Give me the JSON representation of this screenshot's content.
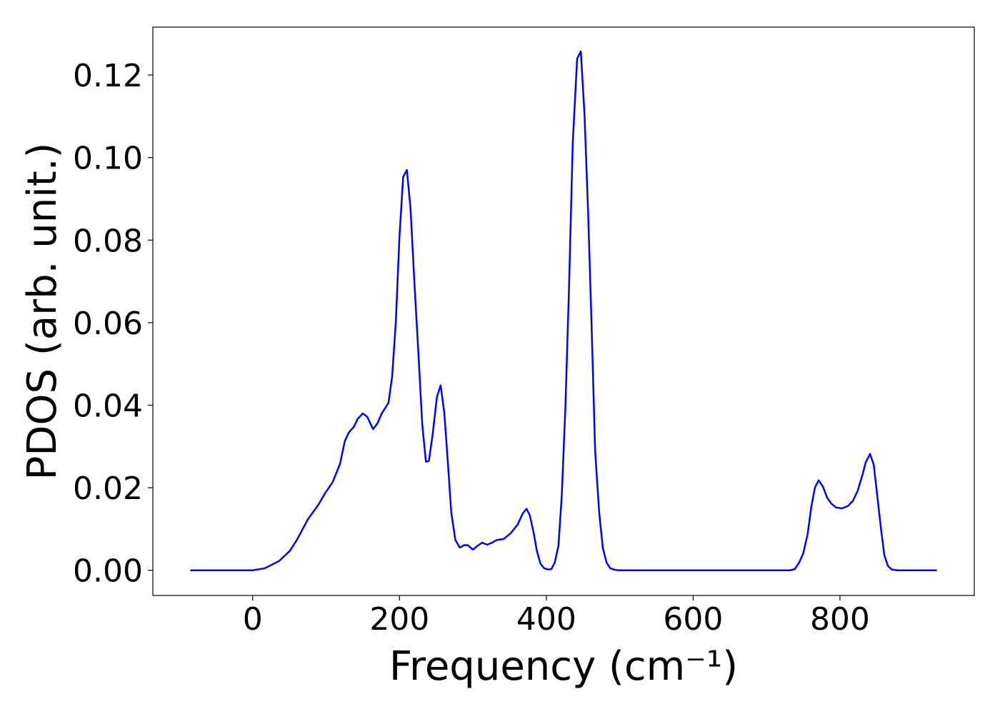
{
  "chart_data": {
    "type": "line",
    "xlabel": "Frequency (cm⁻¹)",
    "ylabel": "PDOS (arb. unit.)",
    "x": [
      -85,
      0,
      16.5,
      36,
      50.6,
      60,
      75,
      89.5,
      99,
      109,
      119,
      125.5,
      131,
      138,
      143,
      150,
      156,
      164,
      170,
      175.5,
      185,
      190,
      195,
      200,
      205,
      210,
      215,
      220,
      226,
      231,
      236,
      240,
      245,
      251,
      256,
      261,
      266,
      270.5,
      276,
      282,
      288,
      293,
      300,
      306,
      312.5,
      319.5,
      326,
      332,
      342,
      351.5,
      361,
      368,
      373,
      377.5,
      382.5,
      387,
      392,
      397,
      402,
      407,
      411.5,
      416.5,
      421,
      426,
      431,
      436,
      442,
      447,
      452,
      457,
      461.5,
      466.5,
      472,
      477,
      482,
      487,
      491.5,
      498,
      732,
      738.5,
      744.5,
      750,
      756,
      761,
      766,
      771,
      777,
      782.5,
      788.5,
      795,
      803,
      811,
      817.5,
      824,
      830,
      835,
      841,
      846,
      851,
      856,
      860.5,
      865.5,
      870.5,
      878,
      932
    ],
    "series": [
      {
        "color": "#0000ff",
        "values": [
          0,
          0,
          0.0005,
          0.00225,
          0.0047,
          0.0073,
          0.0123,
          0.0159,
          0.0188,
          0.0214,
          0.0258,
          0.0313,
          0.0334,
          0.0348,
          0.0367,
          0.038,
          0.0372,
          0.0342,
          0.0356,
          0.0379,
          0.0406,
          0.047,
          0.0603,
          0.0811,
          0.0953,
          0.097,
          0.0877,
          0.0707,
          0.0517,
          0.0353,
          0.0263,
          0.0265,
          0.0327,
          0.042,
          0.0448,
          0.0382,
          0.0258,
          0.014,
          0.0074,
          0.0055,
          0.0061,
          0.0061,
          0.005,
          0.0059,
          0.0067,
          0.0062,
          0.0067,
          0.0073,
          0.0076,
          0.009,
          0.0111,
          0.0138,
          0.0149,
          0.0133,
          0.0093,
          0.0048,
          0.0016,
          0.0005,
          0.0002,
          0.0003,
          0.0019,
          0.0059,
          0.018,
          0.0396,
          0.069,
          0.1036,
          0.124,
          0.1257,
          0.1105,
          0.0863,
          0.0603,
          0.0289,
          0.014,
          0.0054,
          0.0019,
          0.0005,
          0.0002,
          0,
          0,
          0.0003,
          0.0019,
          0.0041,
          0.0088,
          0.0154,
          0.0201,
          0.0218,
          0.0202,
          0.0176,
          0.0161,
          0.0152,
          0.015,
          0.0156,
          0.0168,
          0.0192,
          0.0227,
          0.0261,
          0.0282,
          0.0256,
          0.0178,
          0.0099,
          0.0036,
          0.001,
          0.0002,
          0,
          0
        ]
      }
    ],
    "xlim": [
      -136,
      983
    ],
    "ylim": [
      -0.0061,
      0.1316
    ],
    "xticks": [
      0,
      200,
      400,
      600,
      800
    ],
    "yticks": [
      {
        "value": 0,
        "label": "0.00"
      },
      {
        "value": 0.02,
        "label": "0.02"
      },
      {
        "value": 0.04,
        "label": "0.04"
      },
      {
        "value": 0.06,
        "label": "0.06"
      },
      {
        "value": 0.08,
        "label": "0.08"
      },
      {
        "value": 0.1,
        "label": "0.10"
      },
      {
        "value": 0.12,
        "label": "0.12"
      }
    ]
  }
}
